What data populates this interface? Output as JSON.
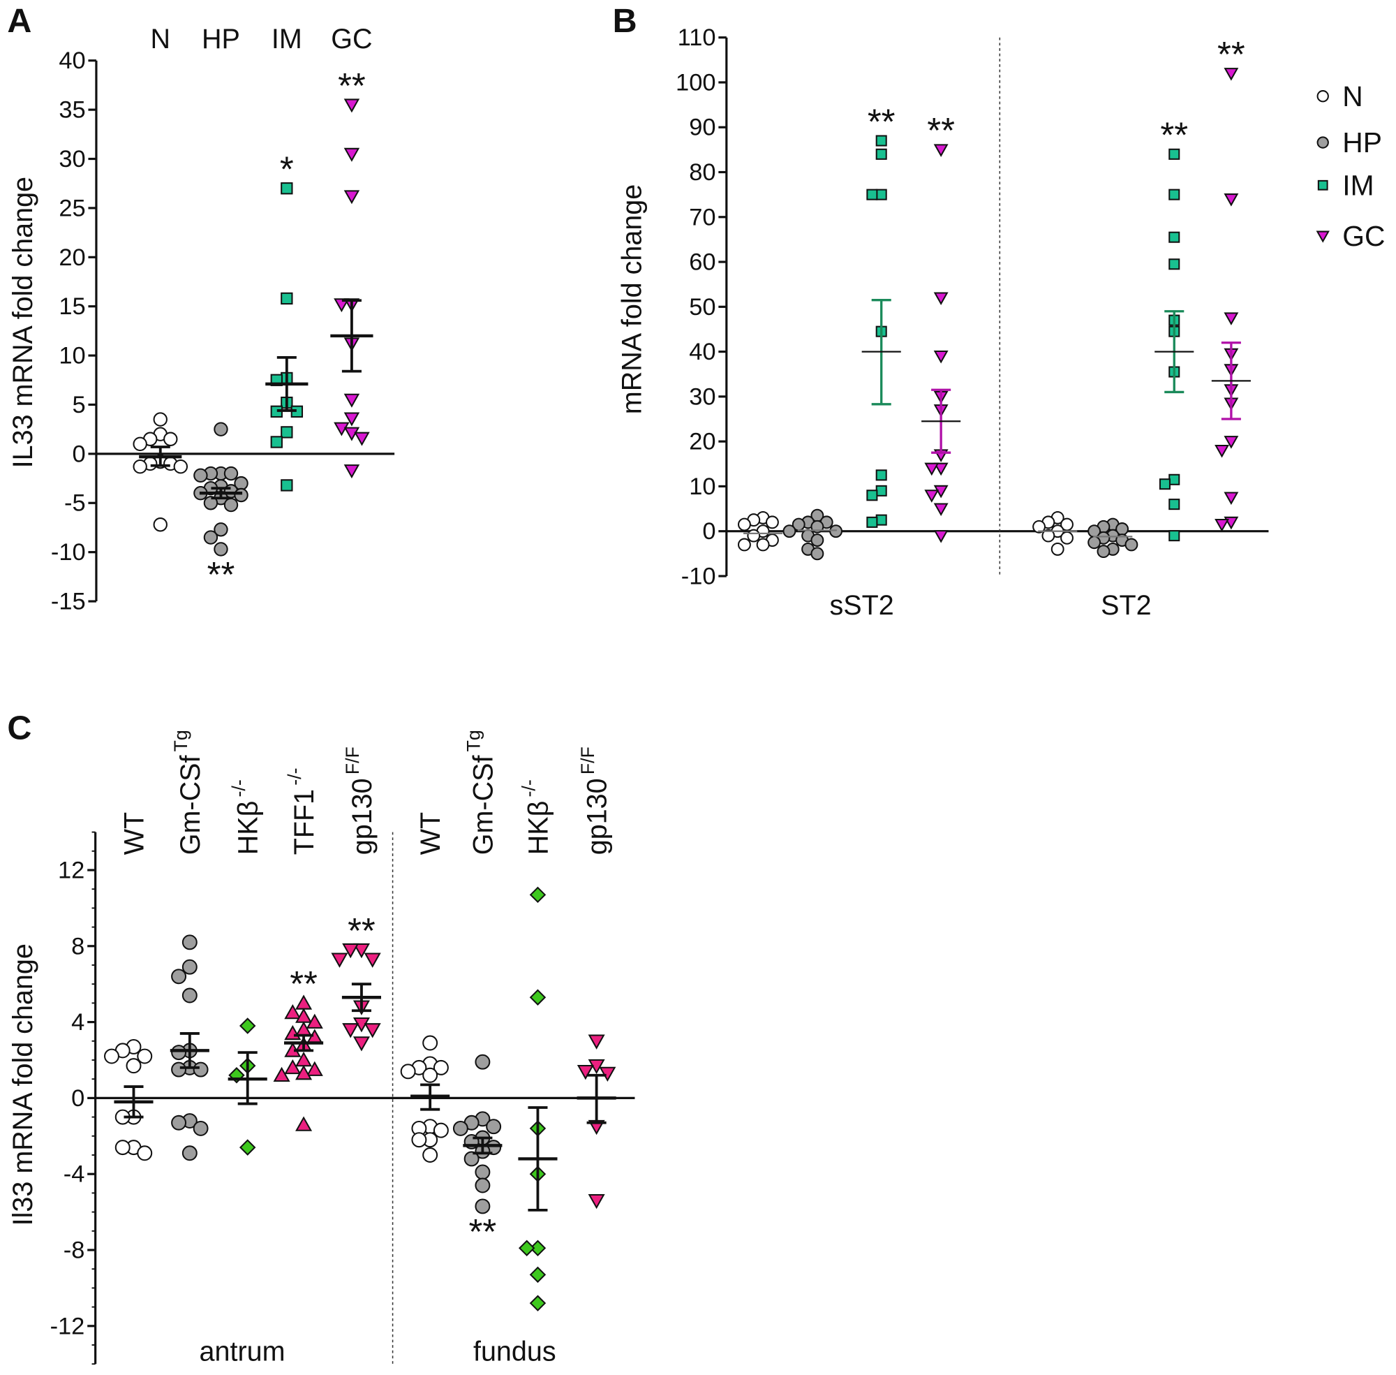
{
  "chart_data": [
    {
      "panel": "A",
      "type": "scatter",
      "ylabel": "IL33 mRNA fold change",
      "ylim": [
        -15,
        40
      ],
      "yticks": [
        40,
        35,
        30,
        25,
        20,
        15,
        10,
        5,
        0,
        -5,
        -10,
        -15
      ],
      "grid": false,
      "groups": [
        {
          "category": "N",
          "marker": "circle",
          "color": "#ffffff",
          "values": [
            3.5,
            2.0,
            1.5,
            1.5,
            1.0,
            -0.8,
            -1.0,
            -1.0,
            -1.3,
            -1.3,
            -7.2
          ],
          "mean": -0.3,
          "sem_upper": 0.7,
          "sem_lower": -1.2,
          "significance": ""
        },
        {
          "category": "HP",
          "marker": "circle",
          "color": "#9e9e9e",
          "values": [
            2.5,
            -2.0,
            -2.0,
            -2.0,
            -2.2,
            -3.0,
            -3.3,
            -3.5,
            -3.8,
            -4.0,
            -4.2,
            -4.5,
            -5.0,
            -5.2,
            -7.7,
            -8.5,
            -9.7
          ],
          "mean": -4.0,
          "sem_upper": -3.5,
          "sem_lower": -4.5,
          "significance": "**"
        },
        {
          "category": "IM",
          "marker": "square",
          "color": "#19c090",
          "values": [
            27.0,
            15.8,
            7.7,
            7.5,
            5.2,
            4.3,
            4.3,
            2.2,
            1.2,
            -3.2
          ],
          "mean": 7.1,
          "sem_upper": 9.8,
          "sem_lower": 4.4,
          "significance": "*"
        },
        {
          "category": "GC",
          "marker": "triangle-down",
          "color": "#d818d0",
          "values": [
            35.5,
            30.5,
            26.2,
            15.2,
            15.2,
            11.2,
            5.5,
            3.6,
            2.6,
            2.1,
            1.6,
            -1.7
          ],
          "mean": 12.0,
          "sem_upper": 15.6,
          "sem_lower": 8.4,
          "significance": "**"
        }
      ]
    },
    {
      "panel": "B",
      "type": "scatter",
      "ylabel": "mRNA fold change",
      "ylim": [
        -10,
        110
      ],
      "yticks": [
        110,
        100,
        90,
        80,
        70,
        60,
        50,
        40,
        30,
        20,
        10,
        0,
        -10
      ],
      "grid": false,
      "legend_position": "right",
      "legend": [
        {
          "label": "N",
          "marker": "circle",
          "color": "#ffffff"
        },
        {
          "label": "HP",
          "marker": "circle",
          "color": "#9e9e9e"
        },
        {
          "label": "IM",
          "marker": "square",
          "color": "#19c090"
        },
        {
          "label": "GC",
          "marker": "triangle-down",
          "color": "#d818d0"
        }
      ],
      "group_labels": [
        "sST2",
        "ST2"
      ],
      "groups": [
        {
          "gene": "sST2",
          "category": "N",
          "marker": "circle",
          "color": "#ffffff",
          "values": [
            3.0,
            2.5,
            2.0,
            1.5,
            0.0,
            -1.0,
            -2.0,
            -3.0,
            -3.0
          ],
          "mean": -0.5,
          "significance": ""
        },
        {
          "gene": "sST2",
          "category": "HP",
          "marker": "circle",
          "color": "#9e9e9e",
          "values": [
            3.5,
            2.0,
            2.0,
            1.5,
            1.0,
            0.0,
            0.0,
            -1.0,
            -2.0,
            -4.0,
            -5.0
          ],
          "mean": 0.2,
          "significance": ""
        },
        {
          "gene": "sST2",
          "category": "IM",
          "marker": "square",
          "color": "#19c090",
          "bar_color": "#1a8a5a",
          "values": [
            87.0,
            84.0,
            75.0,
            75.0,
            44.5,
            12.5,
            9.0,
            8.0,
            2.5,
            2.0
          ],
          "mean": 40.0,
          "sem_upper": 51.5,
          "sem_lower": 28.3,
          "significance": "**"
        },
        {
          "gene": "sST2",
          "category": "GC",
          "marker": "triangle-down",
          "color": "#d818d0",
          "bar_color": "#b010a8",
          "values": [
            85.0,
            52.0,
            39.0,
            30.0,
            27.0,
            17.0,
            14.0,
            14.0,
            9.0,
            8.0,
            5.0,
            -1.0
          ],
          "mean": 24.5,
          "sem_upper": 31.5,
          "sem_lower": 17.5,
          "significance": "**"
        },
        {
          "gene": "ST2",
          "category": "N",
          "marker": "circle",
          "color": "#ffffff",
          "values": [
            3.0,
            2.0,
            1.5,
            1.0,
            0.0,
            -1.0,
            -1.5,
            -4.0
          ],
          "mean": 0.0,
          "significance": ""
        },
        {
          "gene": "ST2",
          "category": "HP",
          "marker": "circle",
          "color": "#9e9e9e",
          "values": [
            1.5,
            1.0,
            0.5,
            0.0,
            -1.0,
            -1.5,
            -2.0,
            -2.5,
            -3.0,
            -4.0,
            -4.5
          ],
          "mean": -1.2,
          "significance": ""
        },
        {
          "gene": "ST2",
          "category": "IM",
          "marker": "square",
          "color": "#19c090",
          "bar_color": "#1a8a5a",
          "values": [
            84.0,
            75.0,
            65.5,
            59.5,
            47.0,
            44.5,
            35.5,
            11.5,
            10.5,
            6.0,
            -1.0
          ],
          "mean": 40.0,
          "sem_upper": 49.0,
          "sem_lower": 31.0,
          "significance": "**"
        },
        {
          "gene": "ST2",
          "category": "GC",
          "marker": "triangle-down",
          "color": "#d818d0",
          "bar_color": "#b010a8",
          "values": [
            102.0,
            74.0,
            47.5,
            39.5,
            36.0,
            31.5,
            28.5,
            20.0,
            18.0,
            7.5,
            2.0,
            1.5
          ],
          "mean": 33.5,
          "sem_upper": 42.0,
          "sem_lower": 25.0,
          "significance": "**"
        }
      ]
    },
    {
      "panel": "C",
      "type": "scatter",
      "ylabel": "Il33 mRNA fold change",
      "ylim": [
        -14,
        14
      ],
      "yticks": [
        12,
        8,
        4,
        0,
        -4,
        -8,
        -12
      ],
      "grid": false,
      "group_labels": [
        "antrum",
        "fundus"
      ],
      "groups": [
        {
          "region": "antrum",
          "category": "WT",
          "sup": "",
          "marker": "circle",
          "color": "#ffffff",
          "values": [
            2.7,
            2.5,
            2.2,
            2.2,
            1.7,
            -1.0,
            -1.0,
            -2.6,
            -2.6,
            -2.9
          ],
          "mean": -0.2,
          "sem_upper": 0.6,
          "sem_lower": -1.0,
          "significance": ""
        },
        {
          "region": "antrum",
          "category": "Gm-CSf",
          "sup": "Tg",
          "marker": "circle",
          "color": "#9e9e9e",
          "values": [
            8.2,
            6.9,
            6.4,
            5.4,
            2.5,
            2.4,
            1.6,
            1.5,
            1.5,
            -1.2,
            -1.3,
            -1.6,
            -2.9
          ],
          "mean": 2.5,
          "sem_upper": 3.4,
          "sem_lower": 1.6,
          "significance": ""
        },
        {
          "region": "antrum",
          "category": "HKβ",
          "sup": "-/-",
          "marker": "diamond",
          "color": "#3ec81e",
          "values": [
            3.8,
            1.7,
            1.2,
            -2.6
          ],
          "mean": 1.0,
          "sem_upper": 2.4,
          "sem_lower": -0.3,
          "significance": ""
        },
        {
          "region": "antrum",
          "category": "TFF1",
          "sup": "-/-",
          "marker": "triangle-up",
          "color": "#ec2080",
          "values": [
            5.0,
            4.5,
            4.3,
            4.0,
            3.6,
            3.4,
            3.2,
            2.8,
            2.5,
            2.0,
            1.6,
            1.5,
            1.3,
            1.2,
            -1.4
          ],
          "mean": 2.9,
          "sem_upper": 3.3,
          "sem_lower": 2.5,
          "significance": "**"
        },
        {
          "region": "antrum",
          "category": "gp130",
          "sup": "F/F",
          "marker": "triangle-down",
          "color": "#ec2080",
          "values": [
            7.8,
            7.8,
            7.3,
            7.3,
            4.8,
            3.9,
            3.6,
            3.6,
            2.9
          ],
          "mean": 5.3,
          "sem_upper": 6.0,
          "sem_lower": 4.6,
          "significance": "**"
        },
        {
          "region": "fundus",
          "category": "WT",
          "sup": "",
          "marker": "circle",
          "color": "#ffffff",
          "values": [
            2.9,
            1.8,
            1.6,
            1.6,
            1.4,
            1.2,
            -1.5,
            -1.6,
            -1.7,
            -2.2,
            -2.2,
            -3.0
          ],
          "mean": 0.1,
          "sem_upper": 0.7,
          "sem_lower": -0.6,
          "significance": ""
        },
        {
          "region": "fundus",
          "category": "Gm-CSf",
          "sup": "Tg",
          "marker": "circle",
          "color": "#9e9e9e",
          "values": [
            1.9,
            -1.1,
            -1.3,
            -1.5,
            -1.6,
            -2.1,
            -2.3,
            -2.6,
            -2.8,
            -3.2,
            -3.9,
            -4.6,
            -5.7
          ],
          "mean": -2.5,
          "sem_upper": -2.1,
          "sem_lower": -2.9,
          "significance": "**"
        },
        {
          "region": "fundus",
          "category": "HKβ",
          "sup": "-/-",
          "marker": "diamond",
          "color": "#3ec81e",
          "values": [
            10.7,
            5.3,
            -1.6,
            -4.0,
            -7.9,
            -7.9,
            -9.3,
            -10.8
          ],
          "mean": -3.2,
          "sem_upper": -0.5,
          "sem_lower": -5.9,
          "significance": ""
        },
        {
          "region": "fundus",
          "category": "gp130",
          "sup": "F/F",
          "marker": "triangle-down",
          "color": "#ec2080",
          "values": [
            3.0,
            1.7,
            1.4,
            1.3,
            -1.5,
            -5.4
          ],
          "mean": 0.0,
          "sem_upper": 1.2,
          "sem_lower": -1.3,
          "significance": ""
        }
      ]
    }
  ]
}
